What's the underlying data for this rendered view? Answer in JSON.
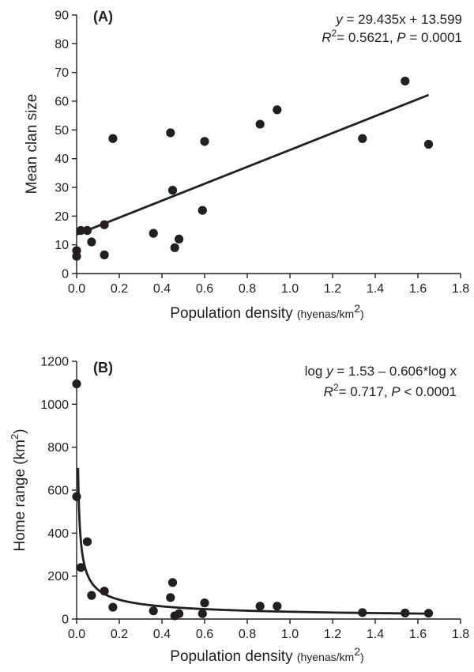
{
  "chart_data": [
    {
      "type": "scatter",
      "panel_label": "(A)",
      "xlabel": "Population density",
      "xlabel_unit": "(hyenas/km2)",
      "ylabel": "Mean clan size",
      "xlim": [
        0,
        1.8
      ],
      "ylim": [
        0,
        90
      ],
      "xticks": [
        "0.0",
        "0.2",
        "0.4",
        "0.6",
        "0.8",
        "1.0",
        "1.2",
        "1.4",
        "1.6",
        "1.8"
      ],
      "yticks": [
        "0",
        "10",
        "20",
        "30",
        "40",
        "50",
        "60",
        "70",
        "80",
        "90"
      ],
      "annotation": {
        "line1": "y = 29.435x + 13.599",
        "line2": "R2= 0.5621, P = 0.0001"
      },
      "fit": {
        "kind": "linear",
        "slope": 29.435,
        "intercept": 13.599,
        "x_range": [
          0.0,
          1.65
        ]
      },
      "points": [
        {
          "x": 0.0,
          "y": 8
        },
        {
          "x": 0.0,
          "y": 6
        },
        {
          "x": 0.02,
          "y": 15
        },
        {
          "x": 0.05,
          "y": 15
        },
        {
          "x": 0.07,
          "y": 11
        },
        {
          "x": 0.13,
          "y": 17
        },
        {
          "x": 0.13,
          "y": 6.5
        },
        {
          "x": 0.17,
          "y": 47
        },
        {
          "x": 0.36,
          "y": 14
        },
        {
          "x": 0.44,
          "y": 49
        },
        {
          "x": 0.45,
          "y": 29
        },
        {
          "x": 0.46,
          "y": 9
        },
        {
          "x": 0.48,
          "y": 12
        },
        {
          "x": 0.59,
          "y": 22
        },
        {
          "x": 0.6,
          "y": 46
        },
        {
          "x": 0.86,
          "y": 52
        },
        {
          "x": 0.94,
          "y": 57
        },
        {
          "x": 1.34,
          "y": 47
        },
        {
          "x": 1.54,
          "y": 67
        },
        {
          "x": 1.65,
          "y": 45
        }
      ]
    },
    {
      "type": "scatter",
      "panel_label": "(B)",
      "xlabel": "Population density",
      "xlabel_unit": "(hyenas/km2)",
      "ylabel": "Home range (km2)",
      "xlim": [
        0,
        1.8
      ],
      "ylim": [
        0,
        1200
      ],
      "xticks": [
        "0.0",
        "0.2",
        "0.4",
        "0.6",
        "0.8",
        "1.0",
        "1.2",
        "1.4",
        "1.6",
        "1.8"
      ],
      "yticks": [
        "0",
        "200",
        "400",
        "600",
        "800",
        "1000",
        "1200"
      ],
      "annotation": {
        "line1": "log y = 1.53 – 0.606*log x",
        "line2": "R2= 0.717, P < 0.0001"
      },
      "fit": {
        "kind": "power",
        "log10_intercept": 1.53,
        "exponent": -0.606,
        "x_range": [
          0.0067,
          1.65
        ]
      },
      "points": [
        {
          "x": 0.0,
          "y": 1095
        },
        {
          "x": 0.0,
          "y": 570
        },
        {
          "x": 0.02,
          "y": 240
        },
        {
          "x": 0.05,
          "y": 360
        },
        {
          "x": 0.07,
          "y": 110
        },
        {
          "x": 0.13,
          "y": 130
        },
        {
          "x": 0.17,
          "y": 55
        },
        {
          "x": 0.36,
          "y": 38
        },
        {
          "x": 0.44,
          "y": 100
        },
        {
          "x": 0.45,
          "y": 170
        },
        {
          "x": 0.46,
          "y": 15
        },
        {
          "x": 0.48,
          "y": 25
        },
        {
          "x": 0.59,
          "y": 25
        },
        {
          "x": 0.6,
          "y": 75
        },
        {
          "x": 0.86,
          "y": 60
        },
        {
          "x": 0.94,
          "y": 60
        },
        {
          "x": 1.34,
          "y": 30
        },
        {
          "x": 1.54,
          "y": 28
        },
        {
          "x": 1.65,
          "y": 27
        }
      ]
    }
  ]
}
